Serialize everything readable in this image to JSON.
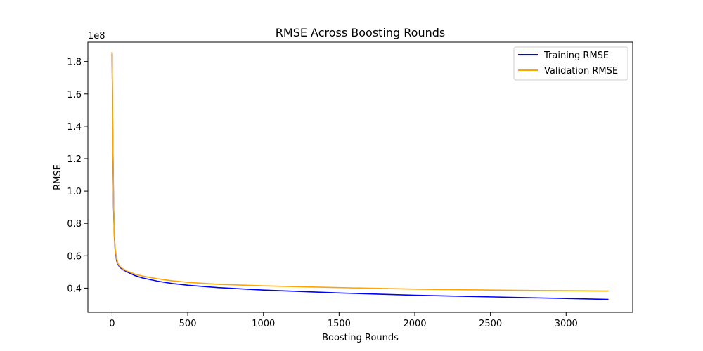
{
  "chart_data": {
    "type": "line",
    "title": "RMSE Across Boosting Rounds",
    "xlabel": "Boosting Rounds",
    "ylabel": "RMSE",
    "y_offset_label": "1e8",
    "xlim": [
      -160,
      3440
    ],
    "ylim": [
      0.25,
      1.92
    ],
    "x_ticks": [
      0,
      500,
      1000,
      1500,
      2000,
      2500,
      3000
    ],
    "x_tick_labels": [
      "0",
      "500",
      "1000",
      "1500",
      "2000",
      "2500",
      "3000"
    ],
    "y_ticks": [
      0.4,
      0.6,
      0.8,
      1.0,
      1.2,
      1.4,
      1.6,
      1.8
    ],
    "y_tick_labels": [
      "0.4",
      "0.6",
      "0.8",
      "1.0",
      "1.2",
      "1.4",
      "1.6",
      "1.8"
    ],
    "grid": false,
    "legend_position": "top-right",
    "series": [
      {
        "name": "Training RMSE",
        "color": "#0000ff",
        "x": [
          0,
          5,
          10,
          15,
          20,
          30,
          40,
          50,
          70,
          100,
          150,
          200,
          300,
          400,
          500,
          700,
          1000,
          1500,
          2000,
          2500,
          3000,
          3280
        ],
        "y": [
          1.85,
          1.3,
          0.9,
          0.72,
          0.64,
          0.57,
          0.545,
          0.53,
          0.515,
          0.5,
          0.478,
          0.463,
          0.443,
          0.428,
          0.418,
          0.403,
          0.388,
          0.37,
          0.356,
          0.346,
          0.336,
          0.33
        ]
      },
      {
        "name": "Validation RMSE",
        "color": "#ffa500",
        "x": [
          0,
          5,
          10,
          15,
          20,
          30,
          40,
          50,
          70,
          100,
          150,
          200,
          300,
          400,
          500,
          700,
          1000,
          1500,
          2000,
          2500,
          3000,
          3280
        ],
        "y": [
          1.86,
          1.32,
          0.92,
          0.73,
          0.65,
          0.58,
          0.55,
          0.535,
          0.52,
          0.505,
          0.487,
          0.475,
          0.458,
          0.445,
          0.436,
          0.424,
          0.414,
          0.403,
          0.394,
          0.388,
          0.384,
          0.382
        ]
      }
    ]
  }
}
